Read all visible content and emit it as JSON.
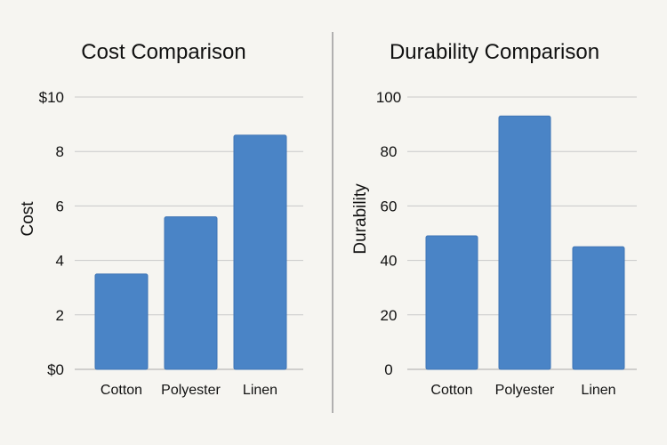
{
  "chart_data": [
    {
      "type": "bar",
      "title": "Cost Comparison",
      "xlabel": "",
      "ylabel": "Cost",
      "categories": [
        "Cotton",
        "Polyester",
        "Linen"
      ],
      "values": [
        3.5,
        5.6,
        8.6
      ],
      "ylim": [
        0,
        10
      ],
      "yticks": [
        0,
        2,
        4,
        6,
        8,
        10
      ],
      "ytick_labels": [
        "$0",
        "2",
        "4",
        "6",
        "8",
        "$10"
      ],
      "bar_color": "#4a84c6",
      "grid": true,
      "legend": "none"
    },
    {
      "type": "bar",
      "title": "Durability Comparison",
      "xlabel": "",
      "ylabel": "Durability",
      "categories": [
        "Cotton",
        "Polyester",
        "Linen"
      ],
      "values": [
        49,
        93,
        45
      ],
      "ylim": [
        0,
        100
      ],
      "yticks": [
        0,
        20,
        40,
        60,
        80,
        100
      ],
      "ytick_labels": [
        "0",
        "20",
        "40",
        "60",
        "80",
        "100"
      ],
      "bar_color": "#4a84c6",
      "grid": true,
      "legend": "none"
    }
  ]
}
